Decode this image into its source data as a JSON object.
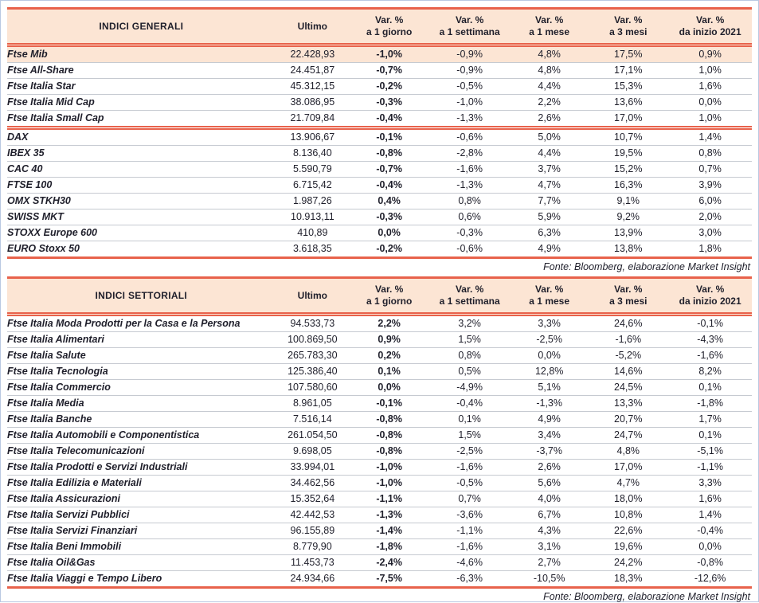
{
  "labels": {
    "ultimo": "Ultimo",
    "var": "Var. %",
    "periods": [
      "a 1 giorno",
      "a 1 settimana",
      "a 1 mese",
      "a 3 mesi",
      "da inizio 2021"
    ],
    "fonte": "Fonte: Bloomberg, elaborazione Market Insight"
  },
  "colors": {
    "accent": "#e8624b",
    "header_bg": "#fce5d4",
    "highlight_row_bg": "#fce5d4",
    "row_divider": "#c6cad1",
    "text": "#1f1f2b",
    "frame": "#b9c9e2"
  },
  "tables": [
    {
      "title": "INDICI GENERALI",
      "rows": [
        {
          "name": "Ftse Mib",
          "ultimo": "22.428,93",
          "var_1d": "-1,0%",
          "var_1w": "-0,9%",
          "var_1m": "4,8%",
          "var_3m": "17,5%",
          "var_ytd": "0,9%",
          "highlight": true
        },
        {
          "name": "Ftse All-Share",
          "ultimo": "24.451,87",
          "var_1d": "-0,7%",
          "var_1w": "-0,9%",
          "var_1m": "4,8%",
          "var_3m": "17,1%",
          "var_ytd": "1,0%"
        },
        {
          "name": "Ftse Italia Star",
          "ultimo": "45.312,15",
          "var_1d": "-0,2%",
          "var_1w": "-0,5%",
          "var_1m": "4,4%",
          "var_3m": "15,3%",
          "var_ytd": "1,6%"
        },
        {
          "name": "Ftse Italia Mid Cap",
          "ultimo": "38.086,95",
          "var_1d": "-0,3%",
          "var_1w": "-1,0%",
          "var_1m": "2,2%",
          "var_3m": "13,6%",
          "var_ytd": "0,0%"
        },
        {
          "name": "Ftse Italia Small Cap",
          "ultimo": "21.709,84",
          "var_1d": "-0,4%",
          "var_1w": "-1,3%",
          "var_1m": "2,6%",
          "var_3m": "17,0%",
          "var_ytd": "1,0%",
          "separator_after": true
        },
        {
          "name": "DAX",
          "ultimo": "13.906,67",
          "var_1d": "-0,1%",
          "var_1w": "-0,6%",
          "var_1m": "5,0%",
          "var_3m": "10,7%",
          "var_ytd": "1,4%"
        },
        {
          "name": "IBEX 35",
          "ultimo": "8.136,40",
          "var_1d": "-0,8%",
          "var_1w": "-2,8%",
          "var_1m": "4,4%",
          "var_3m": "19,5%",
          "var_ytd": "0,8%"
        },
        {
          "name": "CAC 40",
          "ultimo": "5.590,79",
          "var_1d": "-0,7%",
          "var_1w": "-1,6%",
          "var_1m": "3,7%",
          "var_3m": "15,2%",
          "var_ytd": "0,7%"
        },
        {
          "name": "FTSE 100",
          "ultimo": "6.715,42",
          "var_1d": "-0,4%",
          "var_1w": "-1,3%",
          "var_1m": "4,7%",
          "var_3m": "16,3%",
          "var_ytd": "3,9%"
        },
        {
          "name": "OMX STKH30",
          "ultimo": "1.987,26",
          "var_1d": "0,4%",
          "var_1w": "0,8%",
          "var_1m": "7,7%",
          "var_3m": "9,1%",
          "var_ytd": "6,0%"
        },
        {
          "name": "SWISS MKT",
          "ultimo": "10.913,11",
          "var_1d": "-0,3%",
          "var_1w": "0,6%",
          "var_1m": "5,9%",
          "var_3m": "9,2%",
          "var_ytd": "2,0%"
        },
        {
          "name": "STOXX Europe 600",
          "ultimo": "410,89",
          "var_1d": "0,0%",
          "var_1w": "-0,3%",
          "var_1m": "6,3%",
          "var_3m": "13,9%",
          "var_ytd": "3,0%"
        },
        {
          "name": "EURO Stoxx 50",
          "ultimo": "3.618,35",
          "var_1d": "-0,2%",
          "var_1w": "-0,6%",
          "var_1m": "4,9%",
          "var_3m": "13,8%",
          "var_ytd": "1,8%"
        }
      ]
    },
    {
      "title": "INDICI SETTORIALI",
      "rows": [
        {
          "name": "Ftse Italia Moda Prodotti per la Casa e la Persona",
          "ultimo": "94.533,73",
          "var_1d": "2,2%",
          "var_1w": "3,2%",
          "var_1m": "3,3%",
          "var_3m": "24,6%",
          "var_ytd": "-0,1%"
        },
        {
          "name": "Ftse Italia Alimentari",
          "ultimo": "100.869,50",
          "var_1d": "0,9%",
          "var_1w": "1,5%",
          "var_1m": "-2,5%",
          "var_3m": "-1,6%",
          "var_ytd": "-4,3%"
        },
        {
          "name": "Ftse Italia Salute",
          "ultimo": "265.783,30",
          "var_1d": "0,2%",
          "var_1w": "0,8%",
          "var_1m": "0,0%",
          "var_3m": "-5,2%",
          "var_ytd": "-1,6%"
        },
        {
          "name": "Ftse Italia Tecnologia",
          "ultimo": "125.386,40",
          "var_1d": "0,1%",
          "var_1w": "0,5%",
          "var_1m": "12,8%",
          "var_3m": "14,6%",
          "var_ytd": "8,2%"
        },
        {
          "name": "Ftse Italia Commercio",
          "ultimo": "107.580,60",
          "var_1d": "0,0%",
          "var_1w": "-4,9%",
          "var_1m": "5,1%",
          "var_3m": "24,5%",
          "var_ytd": "0,1%"
        },
        {
          "name": "Ftse Italia Media",
          "ultimo": "8.961,05",
          "var_1d": "-0,1%",
          "var_1w": "-0,4%",
          "var_1m": "-1,3%",
          "var_3m": "13,3%",
          "var_ytd": "-1,8%"
        },
        {
          "name": "Ftse Italia Banche",
          "ultimo": "7.516,14",
          "var_1d": "-0,8%",
          "var_1w": "0,1%",
          "var_1m": "4,9%",
          "var_3m": "20,7%",
          "var_ytd": "1,7%"
        },
        {
          "name": "Ftse Italia Automobili e Componentistica",
          "ultimo": "261.054,50",
          "var_1d": "-0,8%",
          "var_1w": "1,5%",
          "var_1m": "3,4%",
          "var_3m": "24,7%",
          "var_ytd": "0,1%"
        },
        {
          "name": "Ftse Italia Telecomunicazioni",
          "ultimo": "9.698,05",
          "var_1d": "-0,8%",
          "var_1w": "-2,5%",
          "var_1m": "-3,7%",
          "var_3m": "4,8%",
          "var_ytd": "-5,1%"
        },
        {
          "name": "Ftse Italia Prodotti e Servizi Industriali",
          "ultimo": "33.994,01",
          "var_1d": "-1,0%",
          "var_1w": "-1,6%",
          "var_1m": "2,6%",
          "var_3m": "17,0%",
          "var_ytd": "-1,1%"
        },
        {
          "name": "Ftse Italia Edilizia e Materiali",
          "ultimo": "34.462,56",
          "var_1d": "-1,0%",
          "var_1w": "-0,5%",
          "var_1m": "5,6%",
          "var_3m": "4,7%",
          "var_ytd": "3,3%"
        },
        {
          "name": "Ftse Italia Assicurazioni",
          "ultimo": "15.352,64",
          "var_1d": "-1,1%",
          "var_1w": "0,7%",
          "var_1m": "4,0%",
          "var_3m": "18,0%",
          "var_ytd": "1,6%"
        },
        {
          "name": "Ftse Italia Servizi Pubblici",
          "ultimo": "42.442,53",
          "var_1d": "-1,3%",
          "var_1w": "-3,6%",
          "var_1m": "6,7%",
          "var_3m": "10,8%",
          "var_ytd": "1,4%"
        },
        {
          "name": "Ftse Italia Servizi Finanziari",
          "ultimo": "96.155,89",
          "var_1d": "-1,4%",
          "var_1w": "-1,1%",
          "var_1m": "4,3%",
          "var_3m": "22,6%",
          "var_ytd": "-0,4%"
        },
        {
          "name": "Ftse Italia Beni Immobili",
          "ultimo": "8.779,90",
          "var_1d": "-1,8%",
          "var_1w": "-1,6%",
          "var_1m": "3,1%",
          "var_3m": "19,6%",
          "var_ytd": "0,0%"
        },
        {
          "name": "Ftse Italia Oil&Gas",
          "ultimo": "11.453,73",
          "var_1d": "-2,4%",
          "var_1w": "-4,6%",
          "var_1m": "2,7%",
          "var_3m": "24,2%",
          "var_ytd": "-0,8%"
        },
        {
          "name": "Ftse Italia Viaggi e Tempo Libero",
          "ultimo": "24.934,66",
          "var_1d": "-7,5%",
          "var_1w": "-6,3%",
          "var_1m": "-10,5%",
          "var_3m": "18,3%",
          "var_ytd": "-12,6%"
        }
      ]
    }
  ]
}
